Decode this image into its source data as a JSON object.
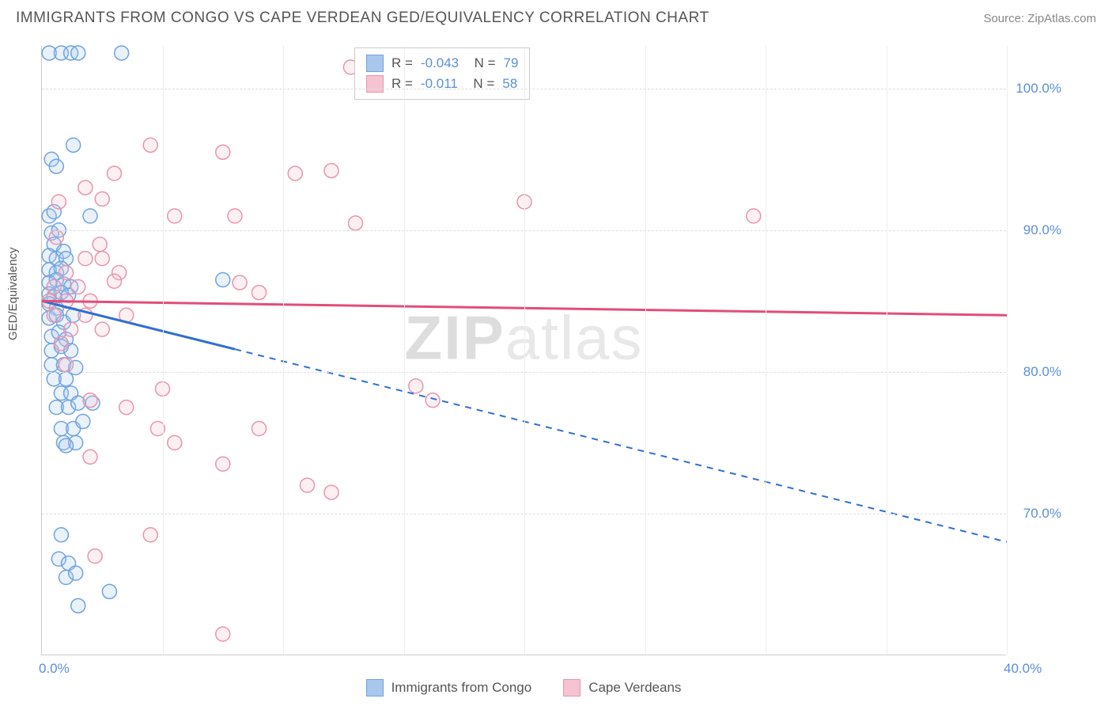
{
  "title": "IMMIGRANTS FROM CONGO VS CAPE VERDEAN GED/EQUIVALENCY CORRELATION CHART",
  "source": "Source: ZipAtlas.com",
  "watermark_a": "ZIP",
  "watermark_b": "atlas",
  "chart": {
    "type": "scatter",
    "ylabel": "GED/Equivalency",
    "xlim": [
      0,
      40
    ],
    "ylim": [
      60,
      103
    ],
    "x_ticks": [
      0,
      5,
      10,
      15,
      20,
      25,
      30,
      35,
      40
    ],
    "x_tick_labels": {
      "0": "0.0%",
      "40": "40.0%"
    },
    "y_ticks": [
      70,
      80,
      90,
      100
    ],
    "y_tick_labels": {
      "70": "70.0%",
      "80": "80.0%",
      "90": "90.0%",
      "100": "100.0%"
    },
    "background_color": "#ffffff",
    "grid_color": "#dddddd",
    "marker_radius": 9,
    "marker_stroke_width": 1.5,
    "marker_fill_opacity": 0.25,
    "series": [
      {
        "name": "Immigrants from Congo",
        "color_stroke": "#6fa3e0",
        "color_fill": "#a9c7ec",
        "line_color": "#2e6fd1",
        "R": "-0.043",
        "N": "79",
        "trend": {
          "x1": 0,
          "y1": 85.0,
          "x2": 40,
          "y2": 68.0,
          "solid_until_x": 8.0
        },
        "points": [
          [
            0.3,
            102.5
          ],
          [
            0.8,
            102.5
          ],
          [
            1.2,
            102.5
          ],
          [
            1.5,
            102.5
          ],
          [
            3.3,
            102.5
          ],
          [
            1.3,
            96.0
          ],
          [
            0.4,
            95.0
          ],
          [
            0.6,
            94.5
          ],
          [
            0.3,
            91.0
          ],
          [
            0.5,
            91.3
          ],
          [
            2.0,
            91.0
          ],
          [
            0.4,
            89.8
          ],
          [
            0.7,
            90.0
          ],
          [
            0.5,
            89.0
          ],
          [
            0.3,
            88.2
          ],
          [
            0.6,
            88.0
          ],
          [
            0.9,
            88.5
          ],
          [
            1.0,
            88.0
          ],
          [
            0.3,
            87.2
          ],
          [
            0.6,
            87.0
          ],
          [
            0.8,
            87.3
          ],
          [
            0.3,
            86.3
          ],
          [
            0.6,
            86.5
          ],
          [
            0.9,
            86.2
          ],
          [
            1.2,
            86.0
          ],
          [
            7.5,
            86.5
          ],
          [
            0.3,
            85.5
          ],
          [
            0.5,
            85.3
          ],
          [
            0.8,
            85.6
          ],
          [
            1.1,
            85.4
          ],
          [
            0.3,
            84.8
          ],
          [
            0.6,
            84.5
          ],
          [
            0.3,
            83.8
          ],
          [
            0.6,
            84.0
          ],
          [
            0.9,
            83.5
          ],
          [
            1.3,
            84.0
          ],
          [
            0.4,
            82.5
          ],
          [
            0.7,
            82.8
          ],
          [
            1.0,
            82.3
          ],
          [
            0.4,
            81.5
          ],
          [
            0.8,
            81.8
          ],
          [
            1.2,
            81.5
          ],
          [
            0.4,
            80.5
          ],
          [
            0.9,
            80.5
          ],
          [
            1.4,
            80.3
          ],
          [
            0.5,
            79.5
          ],
          [
            1.0,
            79.5
          ],
          [
            0.8,
            78.5
          ],
          [
            1.2,
            78.5
          ],
          [
            0.6,
            77.5
          ],
          [
            1.1,
            77.5
          ],
          [
            1.5,
            77.8
          ],
          [
            2.1,
            77.8
          ],
          [
            0.8,
            76.0
          ],
          [
            1.3,
            76.0
          ],
          [
            1.7,
            76.5
          ],
          [
            0.9,
            75.0
          ],
          [
            1.4,
            75.0
          ],
          [
            1.0,
            74.8
          ],
          [
            0.8,
            68.5
          ],
          [
            0.7,
            66.8
          ],
          [
            1.1,
            66.5
          ],
          [
            1.0,
            65.5
          ],
          [
            1.4,
            65.8
          ],
          [
            2.8,
            64.5
          ],
          [
            1.5,
            63.5
          ]
        ]
      },
      {
        "name": "Cape Verdeans",
        "color_stroke": "#e895ab",
        "color_fill": "#f5c3d1",
        "line_color": "#e24d7a",
        "R": "-0.011",
        "N": "58",
        "trend": {
          "x1": 0,
          "y1": 85.0,
          "x2": 40,
          "y2": 84.0,
          "solid_until_x": 40
        },
        "points": [
          [
            12.8,
            101.5
          ],
          [
            4.5,
            96.0
          ],
          [
            7.5,
            95.5
          ],
          [
            3.0,
            94.0
          ],
          [
            10.5,
            94.0
          ],
          [
            12.0,
            94.2
          ],
          [
            1.8,
            93.0
          ],
          [
            0.7,
            92.0
          ],
          [
            2.5,
            92.2
          ],
          [
            20.0,
            92.0
          ],
          [
            29.5,
            91.0
          ],
          [
            5.5,
            91.0
          ],
          [
            8.0,
            91.0
          ],
          [
            13.0,
            90.5
          ],
          [
            0.6,
            89.5
          ],
          [
            2.4,
            89.0
          ],
          [
            1.8,
            88.0
          ],
          [
            2.5,
            88.0
          ],
          [
            1.0,
            87.0
          ],
          [
            3.2,
            87.0
          ],
          [
            0.5,
            86.0
          ],
          [
            1.5,
            86.0
          ],
          [
            3.0,
            86.4
          ],
          [
            8.2,
            86.3
          ],
          [
            0.3,
            85.0
          ],
          [
            1.0,
            85.0
          ],
          [
            2.0,
            85.0
          ],
          [
            9.0,
            85.6
          ],
          [
            0.5,
            84.0
          ],
          [
            1.8,
            84.0
          ],
          [
            3.5,
            84.0
          ],
          [
            1.2,
            83.0
          ],
          [
            2.5,
            83.0
          ],
          [
            0.8,
            82.0
          ],
          [
            1.0,
            80.5
          ],
          [
            5.0,
            78.8
          ],
          [
            2.0,
            78.0
          ],
          [
            15.5,
            79.0
          ],
          [
            16.2,
            78.0
          ],
          [
            3.5,
            77.5
          ],
          [
            4.8,
            76.0
          ],
          [
            9.0,
            76.0
          ],
          [
            2.0,
            74.0
          ],
          [
            5.5,
            75.0
          ],
          [
            7.5,
            73.5
          ],
          [
            11.0,
            72.0
          ],
          [
            12.0,
            71.5
          ],
          [
            4.5,
            68.5
          ],
          [
            2.2,
            67.0
          ],
          [
            7.5,
            61.5
          ]
        ]
      }
    ]
  },
  "legend_bottom": [
    {
      "label": "Immigrants from Congo",
      "stroke": "#6fa3e0",
      "fill": "#a9c7ec"
    },
    {
      "label": "Cape Verdeans",
      "stroke": "#e895ab",
      "fill": "#f5c3d1"
    }
  ]
}
